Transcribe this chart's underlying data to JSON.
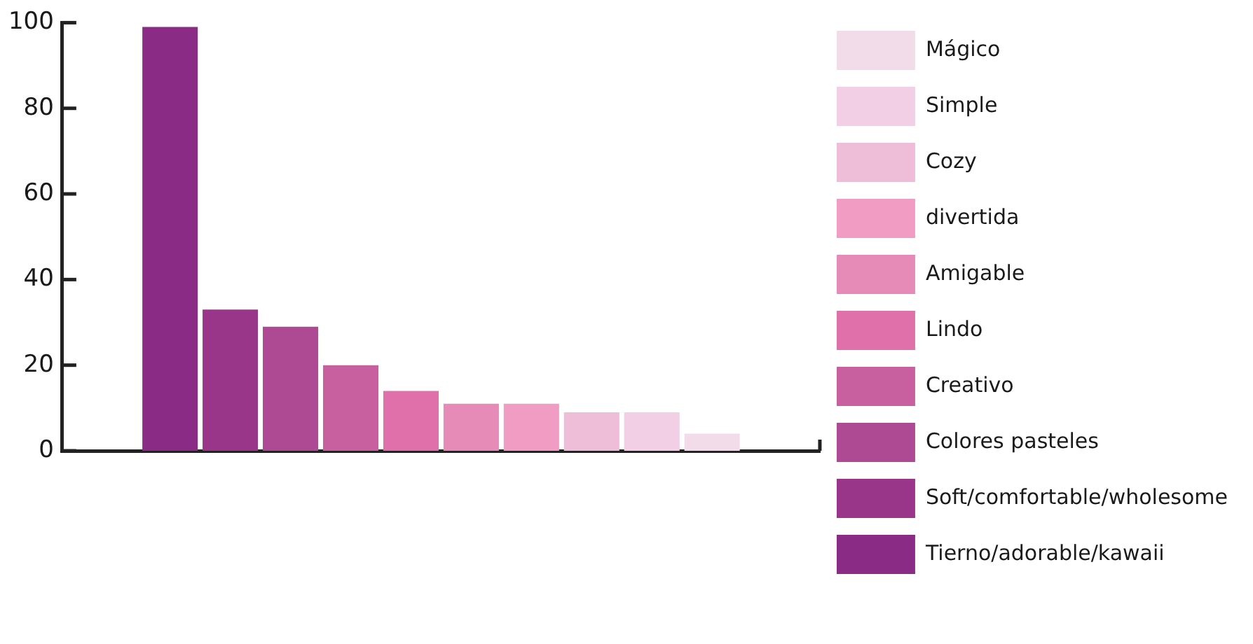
{
  "chart_data": {
    "type": "bar",
    "categories": [
      null
    ],
    "series": [
      {
        "name": "Tierno/adorable/kawaii",
        "color": "#8a2c85",
        "values": [
          99
        ]
      },
      {
        "name": "Soft/comfortable/wholesome",
        "color": "#99368a",
        "values": [
          33
        ]
      },
      {
        "name": "Colores pasteles",
        "color": "#ad4a93",
        "values": [
          29
        ]
      },
      {
        "name": "Creativo",
        "color": "#c85f9f",
        "values": [
          20
        ]
      },
      {
        "name": "Lindo",
        "color": "#e070aa",
        "values": [
          14
        ]
      },
      {
        "name": "Amigable",
        "color": "#e68bb7",
        "values": [
          11
        ]
      },
      {
        "name": "divertida",
        "color": "#f19dc3",
        "values": [
          11
        ]
      },
      {
        "name": "Cozy",
        "color": "#eebdd8",
        "values": [
          9
        ]
      },
      {
        "name": "Simple",
        "color": "#f2cfe4",
        "values": [
          9
        ]
      },
      {
        "name": "Mágico",
        "color": "#f3dce9",
        "values": [
          4
        ]
      }
    ],
    "ylim": [
      0,
      100
    ],
    "yticks": [
      0,
      20,
      40,
      60,
      80,
      100
    ],
    "tick_labels": "y",
    "legend": "right",
    "grid": false
  }
}
